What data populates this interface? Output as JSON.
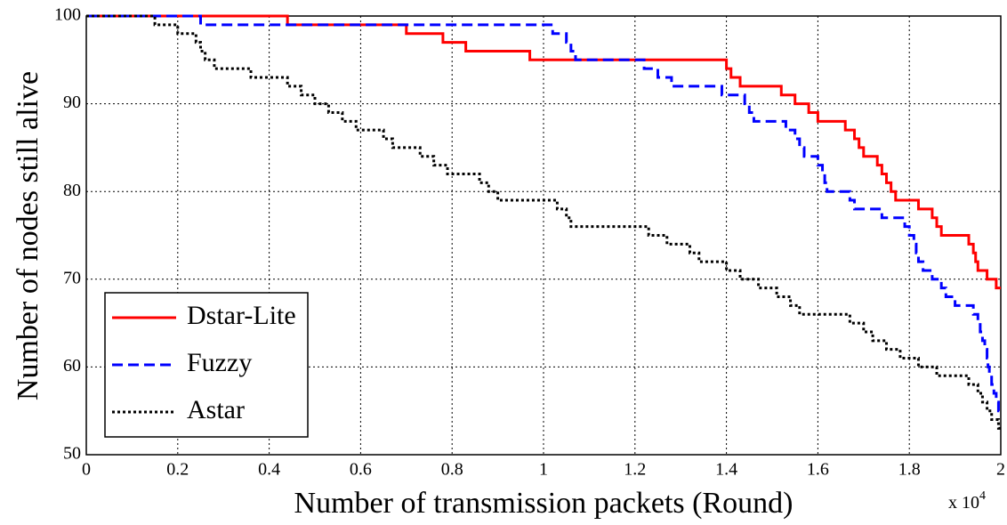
{
  "chart_data": {
    "type": "line",
    "step": true,
    "xlabel": "Number of transmission packets (Round)",
    "ylabel": "Number of nodes still alive",
    "x_multiplier": {
      "base": "x 10",
      "exponent": "4"
    },
    "xlim": [
      0,
      2
    ],
    "ylim": [
      50,
      100
    ],
    "xticks": [
      0,
      0.2,
      0.4,
      0.6,
      0.8,
      1,
      1.2,
      1.4,
      1.6,
      1.8,
      2
    ],
    "yticks": [
      50,
      60,
      70,
      80,
      90,
      100
    ],
    "grid": true,
    "legend": "lower left",
    "series": [
      {
        "name": "Dstar-Lite",
        "color": "#ff0000",
        "linestyle": "solid",
        "x": [
          0,
          0.44,
          0.7,
          0.78,
          0.83,
          0.87,
          0.97,
          1.4,
          1.41,
          1.43,
          1.52,
          1.55,
          1.58,
          1.6,
          1.66,
          1.68,
          1.69,
          1.7,
          1.73,
          1.74,
          1.75,
          1.76,
          1.77,
          1.82,
          1.85,
          1.86,
          1.87,
          1.93,
          1.94,
          1.945,
          1.95,
          1.97,
          1.99,
          2
        ],
        "values": [
          100,
          99,
          98,
          97,
          96,
          96,
          95,
          94,
          93,
          92,
          91,
          90,
          89,
          88,
          87,
          86,
          85,
          84,
          83,
          82,
          81,
          80,
          79,
          78,
          77,
          76,
          75,
          74,
          73,
          72,
          71,
          70,
          69,
          69
        ]
      },
      {
        "name": "Fuzzy",
        "color": "#0000ff",
        "linestyle": "dashed",
        "x": [
          0,
          0.25,
          1.02,
          1.05,
          1.06,
          1.07,
          1.22,
          1.25,
          1.28,
          1.39,
          1.44,
          1.45,
          1.46,
          1.53,
          1.55,
          1.56,
          1.57,
          1.6,
          1.61,
          1.615,
          1.62,
          1.67,
          1.68,
          1.74,
          1.79,
          1.8,
          1.81,
          1.815,
          1.82,
          1.83,
          1.85,
          1.87,
          1.88,
          1.9,
          1.94,
          1.95,
          1.955,
          1.96,
          1.965,
          1.97,
          1.972,
          1.975,
          1.98,
          1.985,
          1.99,
          1.995,
          2
        ],
        "values": [
          100,
          99,
          98,
          97,
          96,
          95,
          94,
          93,
          92,
          91,
          90,
          89,
          88,
          87,
          86,
          85,
          84,
          83,
          82,
          81,
          80,
          79,
          78,
          77,
          76,
          75,
          74,
          73,
          72,
          71,
          70,
          69,
          68,
          67,
          66,
          65,
          64,
          63,
          62,
          61,
          60,
          59,
          58,
          57,
          56,
          55,
          55
        ]
      },
      {
        "name": "Astar",
        "color": "#000000",
        "linestyle": "dotted",
        "x": [
          0,
          0.15,
          0.2,
          0.24,
          0.25,
          0.26,
          0.28,
          0.36,
          0.44,
          0.47,
          0.5,
          0.53,
          0.56,
          0.59,
          0.65,
          0.67,
          0.73,
          0.76,
          0.79,
          0.86,
          0.88,
          0.9,
          1.03,
          1.05,
          1.06,
          1.23,
          1.27,
          1.32,
          1.34,
          1.4,
          1.43,
          1.47,
          1.51,
          1.54,
          1.56,
          1.67,
          1.7,
          1.72,
          1.75,
          1.78,
          1.82,
          1.86,
          1.93,
          1.95,
          1.96,
          1.97,
          1.98,
          1.995,
          2
        ],
        "values": [
          100,
          99,
          98,
          97,
          96,
          95,
          94,
          93,
          92,
          91,
          90,
          89,
          88,
          87,
          86,
          85,
          84,
          83,
          82,
          81,
          80,
          79,
          78,
          77,
          76,
          75,
          74,
          73,
          72,
          71,
          70,
          69,
          68,
          67,
          66,
          65,
          64,
          63,
          62,
          61,
          60,
          59,
          58,
          57,
          56,
          55,
          54,
          53,
          53
        ]
      }
    ]
  }
}
